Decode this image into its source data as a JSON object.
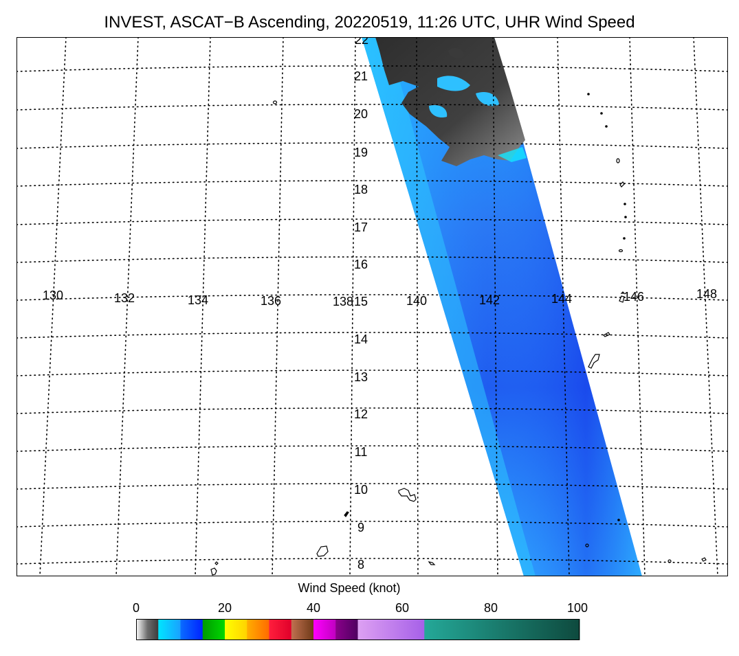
{
  "title": "INVEST, ASCAT−B Ascending, 20220519, 11:26 UTC, UHR Wind Speed",
  "map": {
    "lon_labels": [
      "130",
      "132",
      "134",
      "136",
      "138",
      "140",
      "142",
      "144",
      "146",
      "148"
    ],
    "lat_labels": [
      "22",
      "21",
      "20",
      "19",
      "18",
      "17",
      "16",
      "15",
      "14",
      "13",
      "12",
      "11",
      "10",
      "9",
      "8"
    ],
    "gridlines": "dotted",
    "land_outline_color": "#000000",
    "swath_colors": {
      "low_wind": "#3a3a3a",
      "moderate": "#29b6ff",
      "strong": "#1c5cf0",
      "edge": "#14e0ff"
    }
  },
  "colorbar": {
    "label": "Wind Speed (knot)",
    "tick_labels": [
      "0",
      "20",
      "40",
      "60",
      "80",
      "100"
    ],
    "tick_values": [
      0,
      20,
      40,
      60,
      80,
      100
    ],
    "range": [
      0,
      100
    ],
    "segments": [
      {
        "from": 0,
        "to": 5,
        "colors": [
          "#ffffff",
          "#6e6e6e",
          "#3a3a3a"
        ]
      },
      {
        "from": 5,
        "to": 10,
        "colors": [
          "#00e5ff",
          "#1aa0ff"
        ]
      },
      {
        "from": 10,
        "to": 15,
        "colors": [
          "#0a6cff",
          "#0022ff"
        ]
      },
      {
        "from": 15,
        "to": 20,
        "colors": [
          "#009a00",
          "#00d800"
        ]
      },
      {
        "from": 20,
        "to": 25,
        "colors": [
          "#ffff00",
          "#ffd200"
        ]
      },
      {
        "from": 25,
        "to": 30,
        "colors": [
          "#ffae00",
          "#ff6a00"
        ]
      },
      {
        "from": 30,
        "to": 35,
        "colors": [
          "#ff1e3c",
          "#e0002a"
        ]
      },
      {
        "from": 35,
        "to": 40,
        "colors": [
          "#c07050",
          "#6e3a18"
        ]
      },
      {
        "from": 40,
        "to": 45,
        "colors": [
          "#ff00ff",
          "#c000c0"
        ]
      },
      {
        "from": 45,
        "to": 50,
        "colors": [
          "#8a008a",
          "#4e0060"
        ]
      },
      {
        "from": 50,
        "to": 65,
        "colors": [
          "#dda0f2",
          "#a660e8"
        ]
      },
      {
        "from": 65,
        "to": 100,
        "colors": [
          "#24a898",
          "#0e4a3e"
        ]
      }
    ]
  }
}
